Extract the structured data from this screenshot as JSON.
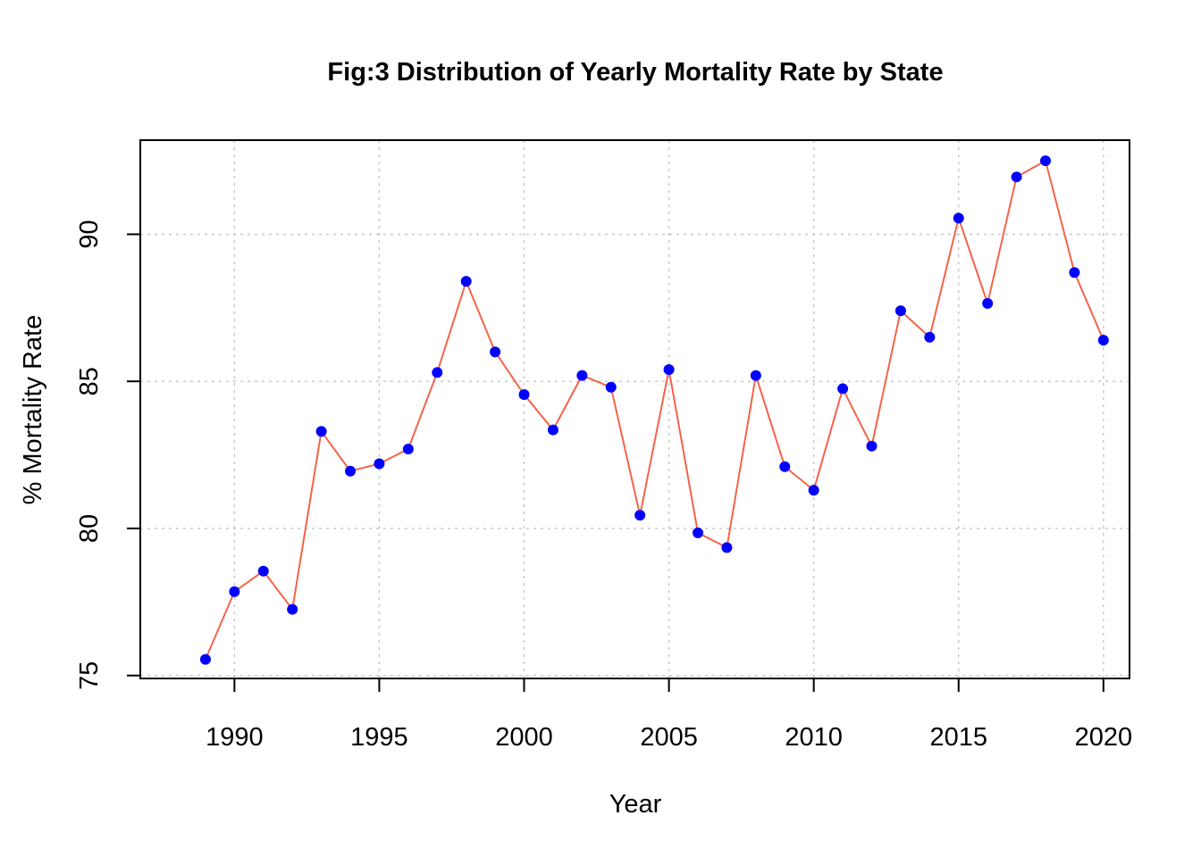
{
  "chart_data": {
    "type": "line",
    "title": "Fig:3 Distribution of Yearly Mortality Rate by State",
    "xlabel": "Year",
    "ylabel": "% Mortality Rate",
    "xlim": [
      1986.75,
      2020.9
    ],
    "ylim": [
      74.9,
      93.2
    ],
    "xticks": [
      1990,
      1995,
      2000,
      2005,
      2010,
      2015,
      2020
    ],
    "yticks": [
      75,
      80,
      85,
      90
    ],
    "grid": true,
    "line_color": "#f4634a",
    "point_color": "#0000ff",
    "series": [
      {
        "x": [
          1989,
          1990,
          1991,
          1992,
          1993,
          1994,
          1995,
          1996,
          1997,
          1998,
          1999,
          2000,
          2001,
          2002,
          2003,
          2004,
          2005,
          2006,
          2007,
          2008,
          2009,
          2010,
          2011,
          2012,
          2013,
          2014,
          2015,
          2016,
          2017,
          2018,
          2019,
          2020
        ],
        "values": [
          75.55,
          77.85,
          78.55,
          77.25,
          83.3,
          81.95,
          82.2,
          82.7,
          85.3,
          88.4,
          86.0,
          84.55,
          83.35,
          85.2,
          84.8,
          80.45,
          85.4,
          79.85,
          79.35,
          85.2,
          82.1,
          81.3,
          84.75,
          82.8,
          87.4,
          86.5,
          90.55,
          87.65,
          91.95,
          92.5,
          88.7,
          86.4
        ]
      }
    ]
  }
}
